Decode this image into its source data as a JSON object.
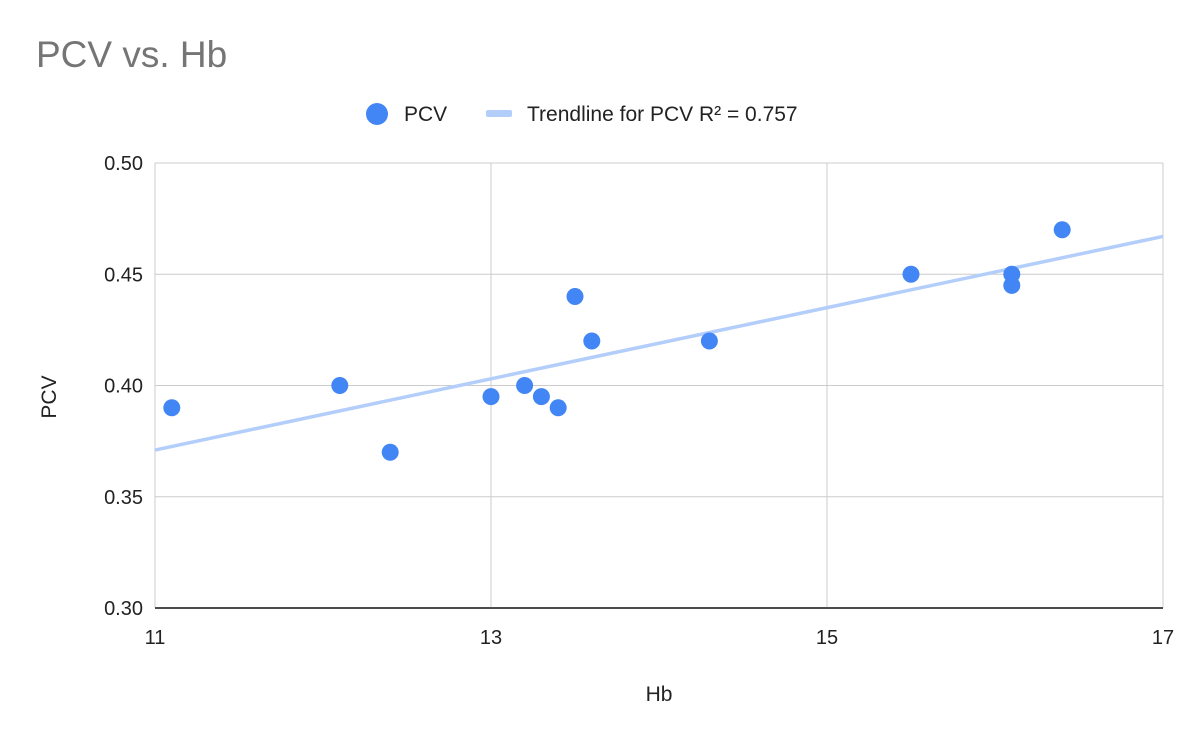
{
  "chart_data": {
    "type": "scatter",
    "title": "PCV vs. Hb",
    "xlabel": "Hb",
    "ylabel": "PCV",
    "xlim": [
      11,
      17
    ],
    "ylim": [
      0.3,
      0.5
    ],
    "x_ticks": [
      "11",
      "13",
      "15",
      "17"
    ],
    "y_ticks": [
      "0.30",
      "0.35",
      "0.40",
      "0.45",
      "0.50"
    ],
    "grid": true,
    "legend_position": "top",
    "series": [
      {
        "name": "PCV",
        "color": "#4285f4",
        "points": [
          {
            "x": 11.1,
            "y": 0.39
          },
          {
            "x": 12.1,
            "y": 0.4
          },
          {
            "x": 12.4,
            "y": 0.37
          },
          {
            "x": 13.0,
            "y": 0.395
          },
          {
            "x": 13.2,
            "y": 0.4
          },
          {
            "x": 13.3,
            "y": 0.395
          },
          {
            "x": 13.4,
            "y": 0.39
          },
          {
            "x": 13.5,
            "y": 0.44
          },
          {
            "x": 13.6,
            "y": 0.42
          },
          {
            "x": 14.3,
            "y": 0.42
          },
          {
            "x": 15.5,
            "y": 0.45
          },
          {
            "x": 16.1,
            "y": 0.45
          },
          {
            "x": 16.1,
            "y": 0.445
          },
          {
            "x": 16.4,
            "y": 0.47
          }
        ]
      }
    ],
    "trendline": {
      "label": "Trendline for PCV R² = 0.757",
      "color": "#b3cefb",
      "points": [
        {
          "x": 11,
          "y": 0.371
        },
        {
          "x": 17,
          "y": 0.467
        }
      ]
    }
  }
}
